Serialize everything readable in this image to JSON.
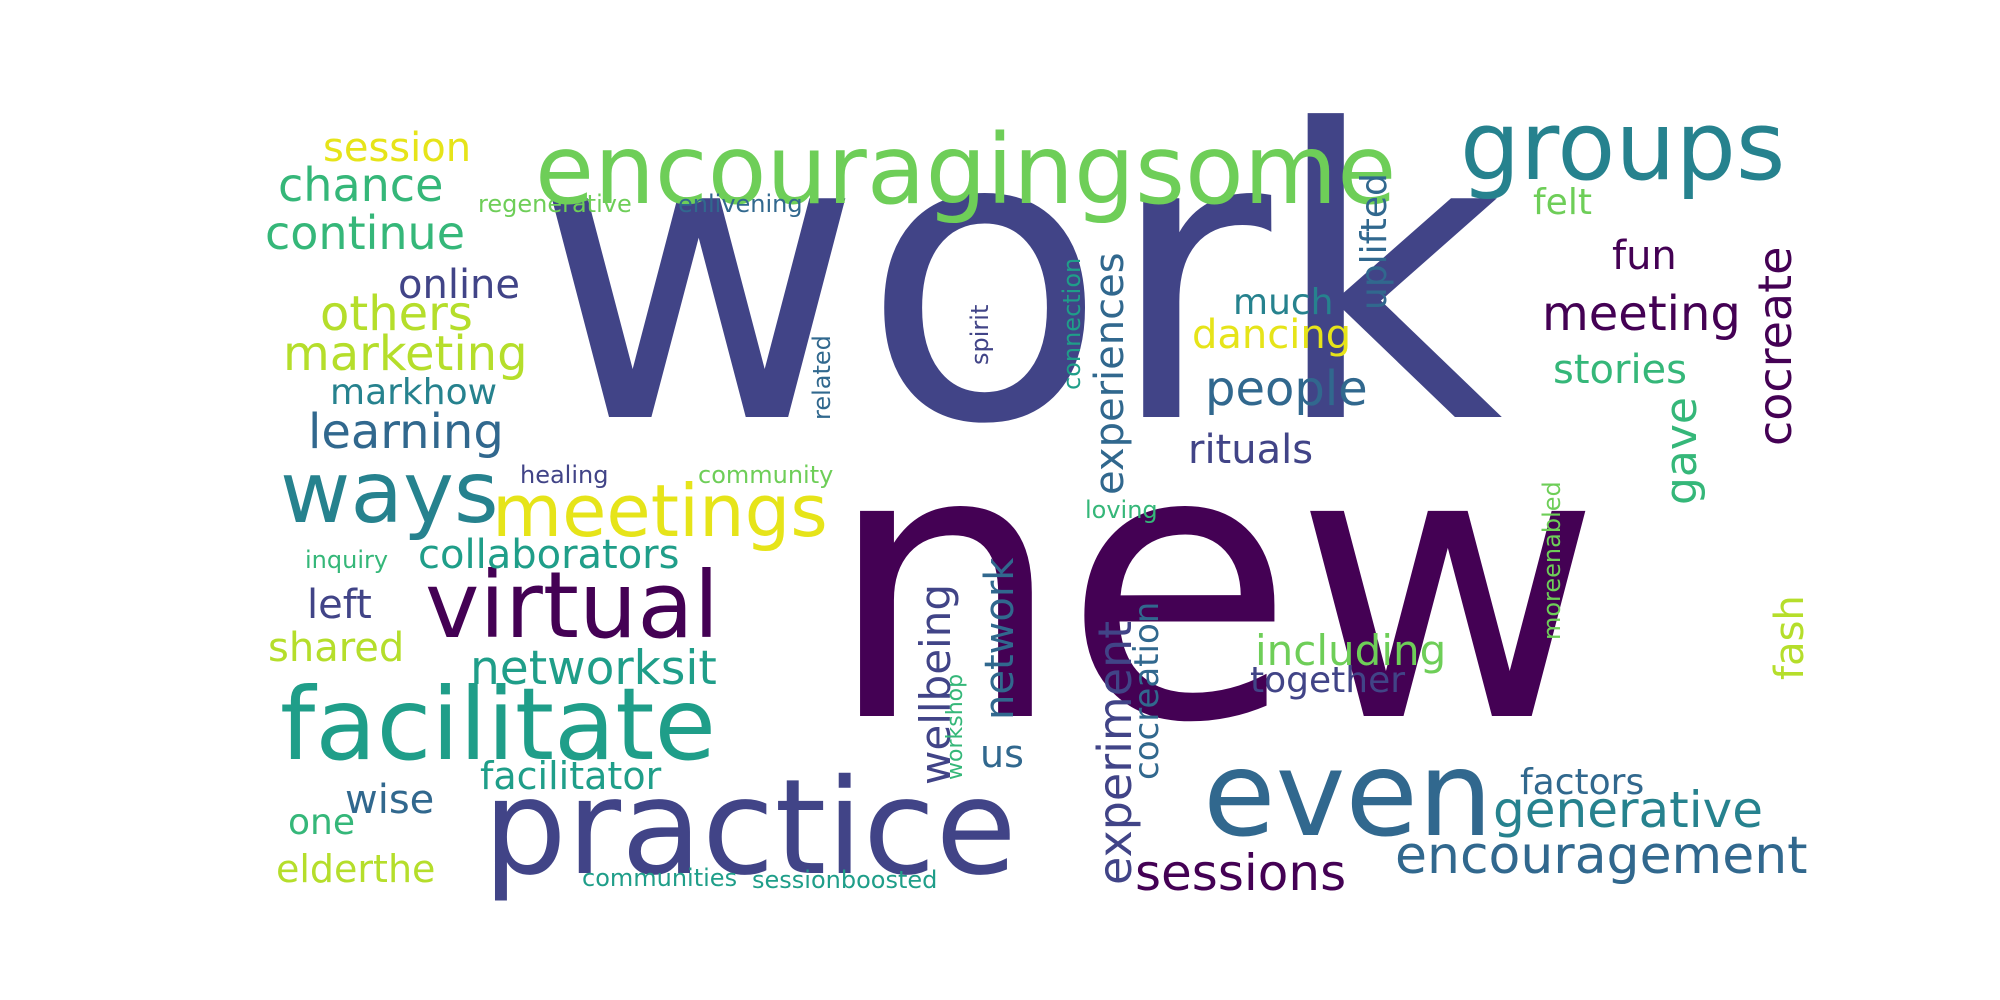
{
  "palette": {
    "purple": "#440154",
    "indigo": "#414487",
    "blue": "#31688e",
    "teal": "#26828e",
    "green": "#1f9e89",
    "mint": "#35b779",
    "lime": "#6ece58",
    "yellowgreen": "#b5de2b",
    "yellow": "#e6e419"
  },
  "words": {
    "work": "work",
    "new": "new",
    "encouragingsome": "encouragingsome",
    "groups": "groups",
    "practice": "practice",
    "even": "even",
    "facilitate": "facilitate",
    "virtual": "virtual",
    "meetings": "meetings",
    "ways": "ways",
    "encouragement": "encouragement",
    "generative": "generative",
    "sessions": "sessions",
    "meeting": "meeting",
    "cocreate": "cocreate",
    "experiences": "experiences",
    "experiment": "experiment",
    "networksit": "networksit",
    "collaborators": "collaborators",
    "learning": "learning",
    "marketing": "marketing",
    "others": "others",
    "continue": "continue",
    "chance": "chance",
    "session": "session",
    "online": "online",
    "markhow": "markhow",
    "people": "people",
    "rituals": "rituals",
    "dancing": "dancing",
    "much": "much",
    "uplifted": "uplifted",
    "felt": "felt",
    "fun": "fun",
    "stories": "stories",
    "gave": "gave",
    "fash": "fash",
    "factors": "factors",
    "including": "including",
    "together": "together",
    "network": "network",
    "wellbeing": "wellbeing",
    "cocreation": "cocreation",
    "facilitator": "facilitator",
    "wise": "wise",
    "one": "one",
    "elderthe": "elderthe",
    "shared": "shared",
    "left": "left",
    "us": "us",
    "regenerative": "regenerative",
    "enlivening": "enlivening",
    "healing": "healing",
    "community": "community",
    "inquiry": "inquiry",
    "loving": "loving",
    "communities": "communities",
    "sessionboosted": "sessionboosted",
    "related": "related",
    "spirit": "spirit",
    "connection": "connection",
    "workshop": "workshop",
    "moreenabled": "moreenabled"
  }
}
